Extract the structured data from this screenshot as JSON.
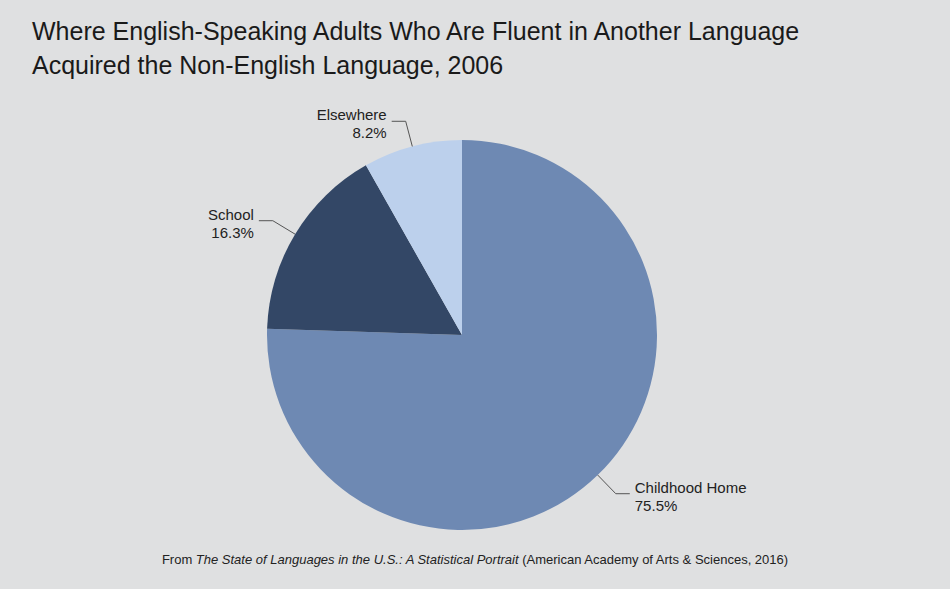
{
  "chart_data": {
    "type": "pie",
    "title": "Where English-Speaking Adults Who Are Fluent in Another Language Acquired the Non-English Language, 2006",
    "categories": [
      "Childhood Home",
      "School",
      "Elsewhere"
    ],
    "values": [
      75.5,
      16.3,
      8.2
    ],
    "value_labels": [
      "75.5%",
      "16.3%",
      "8.2%"
    ],
    "colors": [
      "#6e89b3",
      "#334766",
      "#bcd0ec"
    ],
    "data_labels": true,
    "source": [
      "From ",
      "The State of Languages in the U.S.: A Statistical Portrait",
      " (American Academy of Arts & Sciences, 2016)"
    ]
  }
}
